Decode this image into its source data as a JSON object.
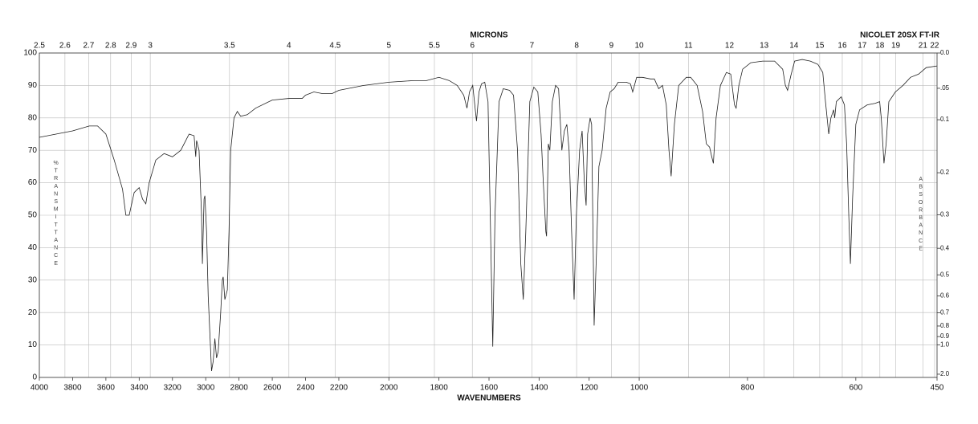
{
  "chart_data": {
    "type": "line",
    "title": "NICOLET 20SX FT-IR",
    "x_label": "WAVENUMBERS",
    "y_label": "%TRANSMITTANCE",
    "y2_label": "ABSORBANCE",
    "xlim": [
      4000,
      450
    ],
    "x_scale_breaks": [
      2200,
      1000
    ],
    "xticks": [
      4000,
      3800,
      3600,
      3400,
      3200,
      3000,
      2800,
      2600,
      2400,
      2200,
      2000,
      1800,
      1600,
      1400,
      1200,
      1000,
      800,
      600,
      450
    ],
    "ylim": [
      0,
      100
    ],
    "yticks": [
      0,
      10,
      20,
      30,
      40,
      50,
      60,
      70,
      80,
      90,
      100
    ],
    "y2_scale": "absorbance",
    "y2ticks": [
      {
        "value": 0,
        "label": "0.0"
      },
      {
        "value": 0.05,
        "label": ".05"
      },
      0.1,
      0.2,
      0.3,
      0.4,
      0.5,
      0.6,
      0.7,
      0.8,
      0.9,
      {
        "value": 1,
        "label": "1.0"
      },
      {
        "value": 2,
        "label": "2.0"
      }
    ],
    "top_axis": {
      "label": "MICRONS",
      "ticks": [
        2.5,
        2.6,
        2.7,
        2.8,
        2.9,
        3,
        3.5,
        4,
        4.5,
        5,
        5.5,
        6,
        7,
        8,
        9,
        10,
        11,
        12,
        13,
        14,
        15,
        16,
        17,
        18,
        19,
        21,
        22
      ]
    },
    "grid": true,
    "series": [
      {
        "color": "#222222",
        "x": [
          4000,
          3900,
          3800,
          3700,
          3650,
          3600,
          3550,
          3500,
          3480,
          3460,
          3430,
          3400,
          3380,
          3360,
          3340,
          3300,
          3250,
          3200,
          3150,
          3120,
          3100,
          3070,
          3060,
          3055,
          3040,
          3025,
          3020,
          3010,
          3005,
          2995,
          2985,
          2965,
          2955,
          2945,
          2935,
          2925,
          2910,
          2900,
          2895,
          2885,
          2870,
          2860,
          2850,
          2830,
          2810,
          2790,
          2750,
          2700,
          2600,
          2500,
          2420,
          2400,
          2350,
          2300,
          2240,
          2200,
          2100,
          2000,
          1900,
          1850,
          1800,
          1759,
          1727,
          1701,
          1688,
          1678,
          1665,
          1650,
          1640,
          1630,
          1617,
          1604,
          1595,
          1585,
          1576,
          1560,
          1543,
          1518,
          1502,
          1486,
          1473,
          1463,
          1453,
          1437,
          1421,
          1405,
          1392,
          1383,
          1373,
          1370,
          1363,
          1357,
          1347,
          1334,
          1322,
          1309,
          1299,
          1289,
          1280,
          1270,
          1260,
          1251,
          1238,
          1228,
          1219,
          1212,
          1206,
          1196,
          1190,
          1180,
          1170,
          1161,
          1148,
          1132,
          1116,
          1100,
          1084,
          1068,
          1051,
          1035,
          1026,
          1019,
          1010,
          994,
          979,
          972,
          964,
          957,
          950,
          945,
          941,
          935,
          927,
          913,
          905,
          893,
          883,
          876,
          870,
          866,
          863,
          858,
          850,
          839,
          831,
          824,
          821,
          816,
          809,
          794,
          772,
          750,
          735,
          730,
          726,
          720,
          713,
          699,
          684,
          670,
          661,
          656,
          650,
          646,
          641,
          639,
          636,
          627,
          621,
          617,
          613,
          610,
          606,
          600,
          593,
          579,
          564,
          556,
          553,
          548,
          544,
          539,
          527,
          513,
          499,
          484,
          470,
          450
        ],
        "values": [
          74,
          75,
          76,
          77.5,
          77.5,
          75,
          67,
          58,
          50,
          50,
          57,
          58.5,
          55,
          53.5,
          60,
          67,
          69,
          68,
          70,
          73,
          75,
          74.5,
          68,
          73,
          70,
          50,
          35,
          55,
          56,
          45,
          25,
          2,
          5,
          12,
          6,
          8,
          20,
          30,
          31,
          24,
          27,
          45,
          70,
          80,
          82,
          80.5,
          81,
          83,
          85.5,
          86,
          86,
          87,
          88,
          87.5,
          87.5,
          88.5,
          90,
          91,
          91.5,
          91.5,
          92.5,
          91.5,
          90,
          87,
          83,
          88,
          90,
          79,
          88,
          90.5,
          91,
          85,
          50,
          9.5,
          50,
          85,
          89,
          88.5,
          87,
          70,
          35,
          24,
          45,
          85,
          89.5,
          88,
          75,
          60,
          45,
          43.5,
          72,
          70,
          85,
          90,
          89,
          70,
          76,
          78,
          70,
          45,
          24,
          50,
          70,
          76,
          60,
          53,
          75,
          80,
          78,
          16,
          40,
          65,
          70,
          83,
          88,
          89,
          91,
          91,
          91,
          90.5,
          88,
          90,
          92.5,
          92.5,
          92,
          92,
          89,
          90,
          84,
          70,
          62,
          78,
          90,
          92.5,
          92.5,
          90,
          82,
          72,
          71,
          68,
          66,
          80,
          90,
          94,
          93.5,
          84,
          83,
          90,
          95,
          97,
          97.5,
          97.5,
          95,
          90,
          88.5,
          93,
          97.5,
          98,
          97.5,
          96.5,
          94,
          85,
          75,
          80,
          82.5,
          80,
          85,
          86.5,
          84,
          72,
          50,
          35,
          55,
          78,
          82.5,
          84,
          84.5,
          85,
          80,
          66,
          72,
          85,
          88,
          90,
          92.5,
          93.5,
          95.5,
          96
        ]
      }
    ]
  }
}
